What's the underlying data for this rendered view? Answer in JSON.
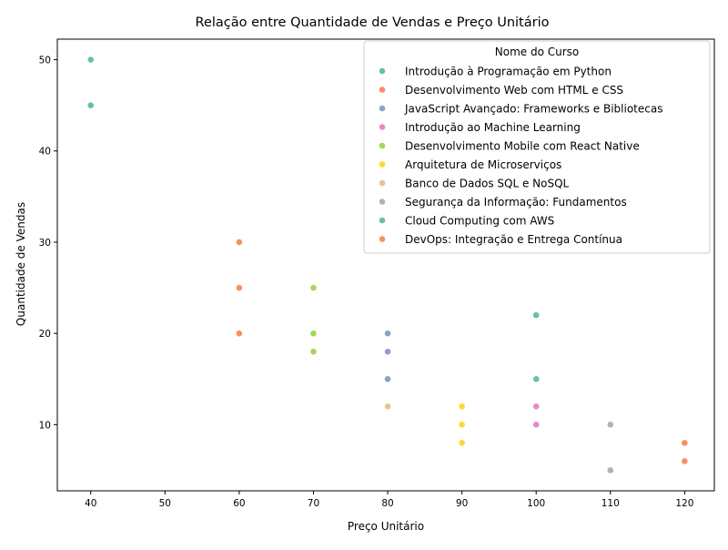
{
  "chart_data": {
    "type": "scatter",
    "title": "Relação entre Quantidade de Vendas e Preço Unitário",
    "xlabel": "Preço Unitário",
    "ylabel": "Quantidade de Vendas",
    "xlim": [
      35.5,
      124
    ],
    "ylim": [
      2.75,
      52.25
    ],
    "xticks": [
      40,
      50,
      60,
      70,
      80,
      90,
      100,
      110,
      120
    ],
    "yticks": [
      10,
      20,
      30,
      40,
      50
    ],
    "grid": false,
    "legend": {
      "title": "Nome do Curso",
      "position": "top-right"
    },
    "series": [
      {
        "name": "Introdução à Programação em Python",
        "color": "#66c2a5",
        "points": [
          [
            40,
            50
          ],
          [
            40,
            45
          ]
        ]
      },
      {
        "name": "Desenvolvimento Web com HTML e CSS",
        "color": "#fc8d62",
        "points": [
          [
            60,
            30
          ],
          [
            60,
            25
          ],
          [
            60,
            20
          ]
        ]
      },
      {
        "name": "JavaScript Avançado: Frameworks e Bibliotecas",
        "color": "#8da0cb",
        "points": [
          [
            80,
            20
          ],
          [
            80,
            18
          ],
          [
            80,
            15
          ]
        ]
      },
      {
        "name": "Introdução ao Machine Learning",
        "color": "#e78ac3",
        "points": [
          [
            100,
            12
          ],
          [
            100,
            10
          ]
        ]
      },
      {
        "name": "Desenvolvimento Mobile com React Native",
        "color": "#a6d854",
        "points": [
          [
            70,
            25
          ],
          [
            70,
            20
          ],
          [
            70,
            18
          ]
        ]
      },
      {
        "name": "Arquitetura de Microserviços",
        "color": "#ffd92f",
        "points": [
          [
            90,
            12
          ],
          [
            90,
            10
          ],
          [
            90,
            8
          ]
        ]
      },
      {
        "name": "Banco de Dados SQL e NoSQL",
        "color": "#e5c494",
        "points": [
          [
            80,
            12
          ]
        ]
      },
      {
        "name": "Segurança da Informação: Fundamentos",
        "color": "#b3b3b3",
        "points": [
          [
            110,
            10
          ],
          [
            110,
            5
          ]
        ]
      },
      {
        "name": "Cloud Computing com AWS",
        "color": "#66c2a5",
        "points": [
          [
            100,
            22
          ],
          [
            100,
            15
          ]
        ]
      },
      {
        "name": "DevOps: Integração e Entrega Contínua",
        "color": "#fc8d62",
        "points": [
          [
            120,
            8
          ],
          [
            120,
            6
          ]
        ]
      }
    ]
  }
}
